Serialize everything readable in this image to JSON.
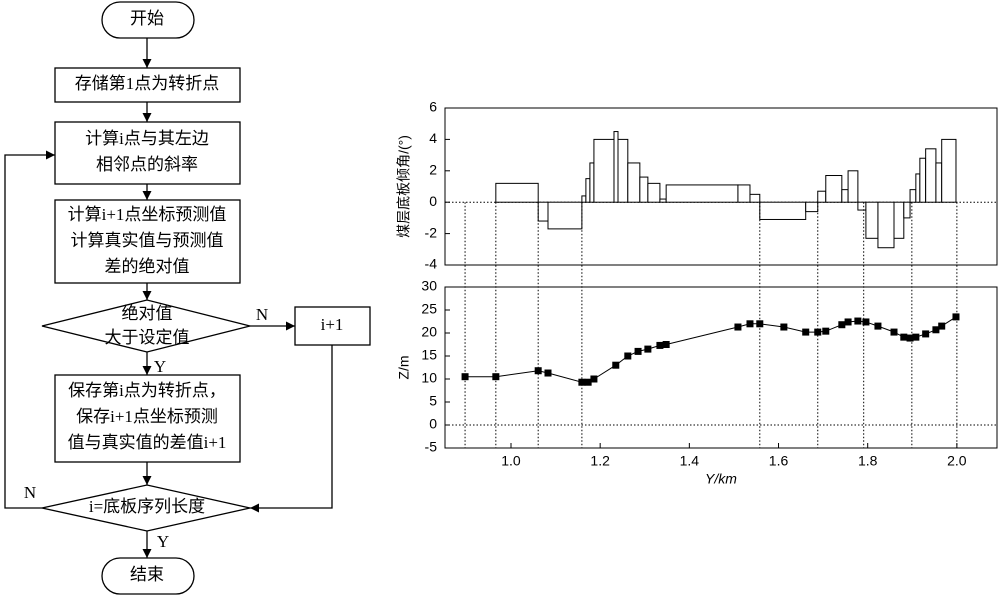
{
  "flowchart": {
    "nodes": [
      {
        "lines": [
          "开始"
        ]
      },
      {
        "lines": [
          "存储第1点为转折点"
        ]
      },
      {
        "lines": [
          "计算i点与其左边",
          "相邻点的斜率"
        ]
      },
      {
        "lines": [
          "计算i+1点坐标预测值",
          "计算真实值与预测值",
          "差的绝对值"
        ]
      },
      {
        "lines": [
          "绝对值",
          "大于设定值"
        ]
      },
      {
        "lines": [
          "i+1"
        ]
      },
      {
        "lines": [
          "保存第i点为转折点，",
          "保存i+1点坐标预测",
          "值与真实值的差值i+1"
        ]
      },
      {
        "lines": [
          "i=底板序列长度"
        ]
      },
      {
        "lines": [
          "结束"
        ]
      }
    ],
    "edge_labels": [
      "N",
      "Y",
      "N",
      "Y"
    ]
  },
  "chart_data": [
    {
      "type": "histogram",
      "ylabel": "煤层底板倾角/(°)",
      "color": "#000000",
      "xlim": [
        0.852,
        2.09
      ],
      "ylim": [
        -4,
        6
      ],
      "yticks": [
        -4,
        -2,
        0,
        2,
        4,
        6
      ],
      "bins": [
        0.966,
        1.061,
        1.083,
        1.159,
        1.168,
        1.177,
        1.186,
        1.231,
        1.24,
        1.262,
        1.289,
        1.307,
        1.334,
        1.348,
        1.509,
        1.536,
        1.558,
        1.661,
        1.688,
        1.706,
        1.742,
        1.756,
        1.778,
        1.796,
        1.823,
        1.859,
        1.881,
        1.895,
        1.908,
        1.917,
        1.93,
        1.953,
        1.966,
        1.998
      ],
      "values": [
        1.2,
        -1.2,
        -1.7,
        0.4,
        1.5,
        2.5,
        4.0,
        4.5,
        4.0,
        2.5,
        1.6,
        1.2,
        0.2,
        1.1,
        1.1,
        0.5,
        -1.1,
        -0.6,
        0.7,
        1.7,
        0.8,
        2.0,
        -0.5,
        -2.3,
        -2.9,
        -2.3,
        -1.0,
        0.8,
        1.8,
        2.8,
        3.4,
        2.5,
        4.0
      ]
    },
    {
      "type": "line",
      "xlabel": "Y/km",
      "ylabel": "Z/m",
      "color": "#000000",
      "xlim": [
        0.852,
        2.09
      ],
      "ylim": [
        -5,
        30
      ],
      "yticks": [
        -5,
        0,
        5,
        10,
        15,
        20,
        25,
        30
      ],
      "xticks": [
        {
          "value": 1.0,
          "label": "1.0"
        },
        1.2,
        1.4,
        1.6,
        1.8,
        {
          "value": 2.0,
          "label": "2.0"
        }
      ],
      "turning_points": [
        0.897,
        0.966,
        1.061,
        1.159,
        1.558,
        1.688,
        1.791,
        1.899,
        2.0
      ],
      "x": [
        0.897,
        0.966,
        1.061,
        1.083,
        1.159,
        1.173,
        1.186,
        1.235,
        1.262,
        1.285,
        1.307,
        1.334,
        1.348,
        1.509,
        1.536,
        1.558,
        1.612,
        1.661,
        1.688,
        1.706,
        1.742,
        1.756,
        1.778,
        1.796,
        1.823,
        1.859,
        1.881,
        1.895,
        1.908,
        1.93,
        1.953,
        1.966,
        1.998
      ],
      "values": [
        10.5,
        10.5,
        11.8,
        11.3,
        9.3,
        9.3,
        10.0,
        13.0,
        15.0,
        16.0,
        16.5,
        17.3,
        17.5,
        21.3,
        22.0,
        22.0,
        21.3,
        20.2,
        20.2,
        20.4,
        21.8,
        22.4,
        22.6,
        22.4,
        21.5,
        20.2,
        19.1,
        18.9,
        19.1,
        19.8,
        20.7,
        21.5,
        23.5
      ]
    }
  ]
}
